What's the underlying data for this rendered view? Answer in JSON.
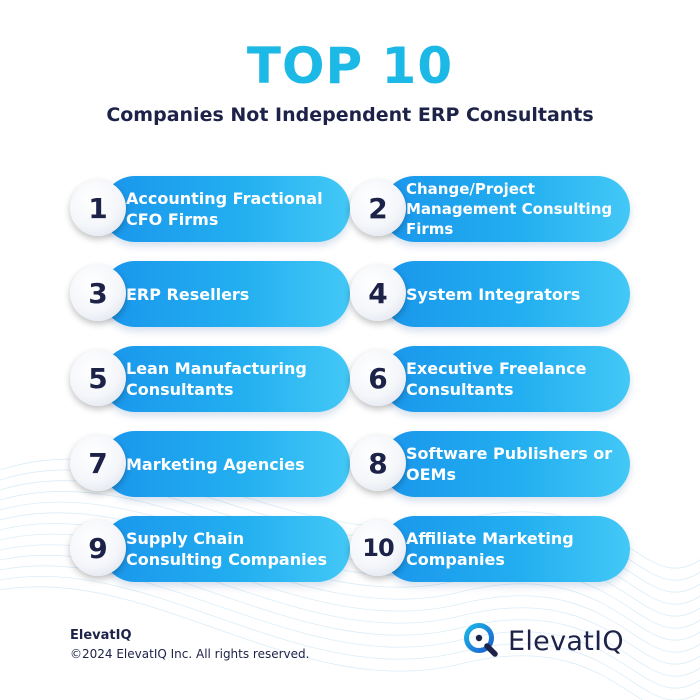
{
  "header": {
    "title": "TOP 10",
    "subtitle": "Companies Not Independent ERP Consultants"
  },
  "items": [
    {
      "number": "1",
      "label": "Accounting Fractional CFO Firms"
    },
    {
      "number": "2",
      "label": "Change/Project Management Consulting Firms"
    },
    {
      "number": "3",
      "label": "ERP Resellers"
    },
    {
      "number": "4",
      "label": "System Integrators"
    },
    {
      "number": "5",
      "label": "Lean Manufacturing Consultants"
    },
    {
      "number": "6",
      "label": "Executive Freelance Consultants"
    },
    {
      "number": "7",
      "label": "Marketing Agencies"
    },
    {
      "number": "8",
      "label": "Software Publishers or OEMs"
    },
    {
      "number": "9",
      "label": "Supply Chain Consulting Companies"
    },
    {
      "number": "10",
      "label": "Affiliate Marketing Companies"
    }
  ],
  "footer": {
    "brand": "ElevatIQ",
    "copyright": "©2024 ElevatIQ Inc. All rights reserved.",
    "logo_text": "ElevatIQ"
  },
  "colors": {
    "title": "#1cb8e6",
    "navy": "#1d2248",
    "pill_start": "#1a96ec",
    "pill_end": "#43c8f6"
  },
  "icons": {
    "logo": "q-magnifier-icon"
  }
}
